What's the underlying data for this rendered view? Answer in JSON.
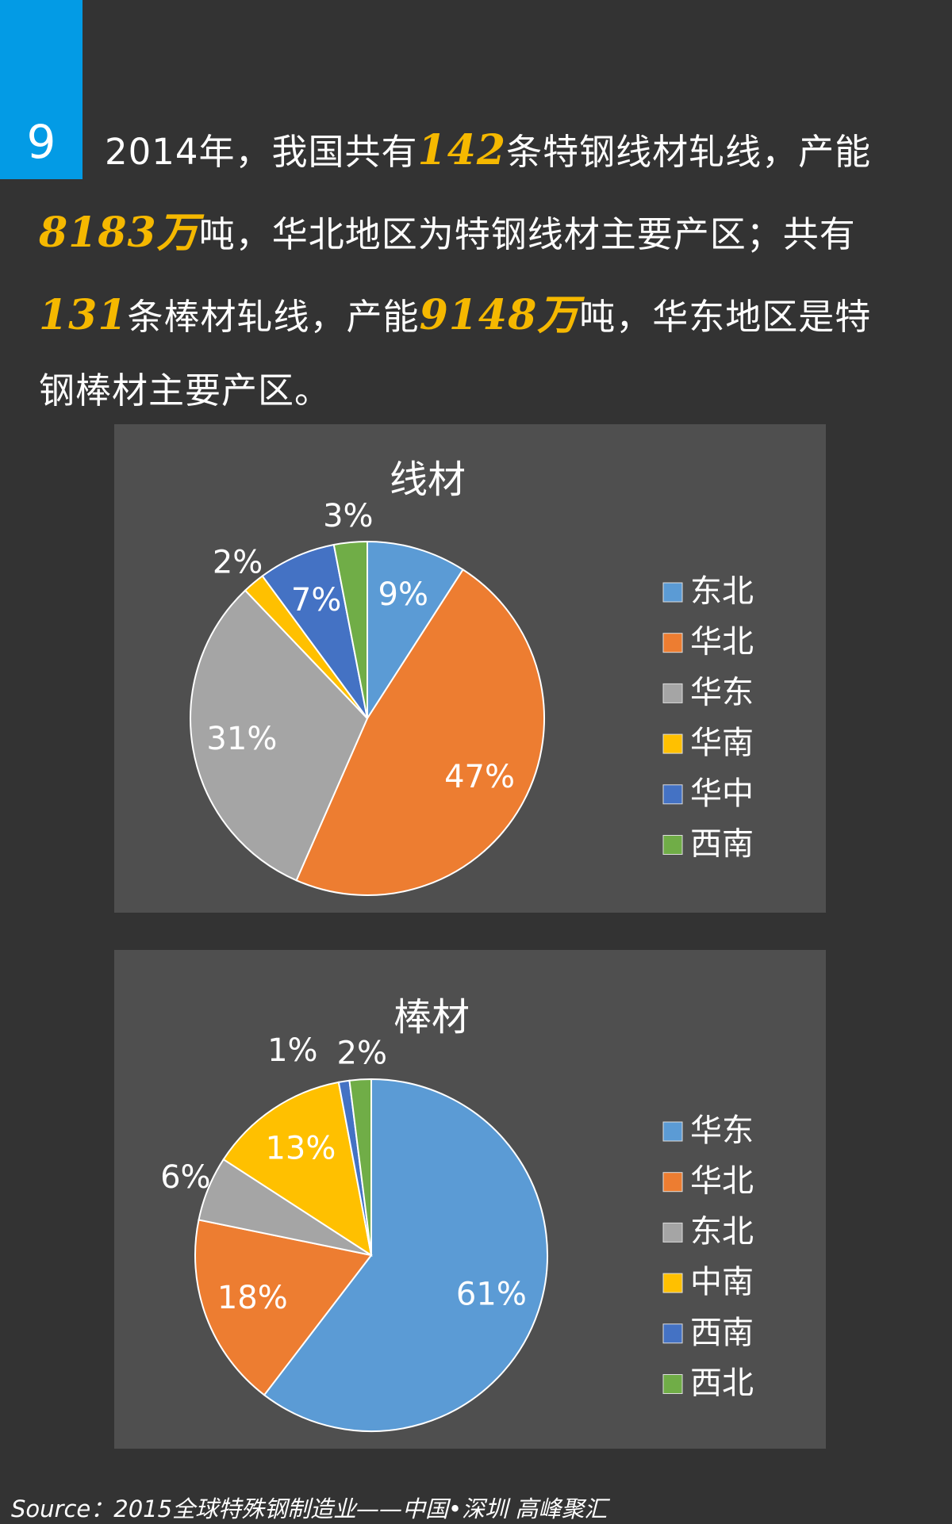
{
  "badge": {
    "number": "9"
  },
  "headline": {
    "l1a": "2014年，我国共有",
    "l1b": "142",
    "l1c": "条特钢线材轧线，产能",
    "l2a": "8183万",
    "l2b": "吨，华北地区为特钢线材主要产区；共有",
    "l3a": "131",
    "l3b": "条棒材轧线，产能",
    "l3c": "9148万",
    "l3d": "吨，华东地区是特",
    "l4": "钢棒材主要产区。"
  },
  "source": "Source：2015全球特殊钢制造业——中国•深圳 高峰聚汇",
  "chart_data": [
    {
      "type": "pie",
      "title": "线材",
      "categories": [
        "东北",
        "华北",
        "华东",
        "华南",
        "华中",
        "西南"
      ],
      "values": [
        9,
        47,
        31,
        2,
        7,
        3
      ],
      "labels": [
        "9%",
        "47%",
        "31%",
        "2%",
        "7%",
        "3%"
      ],
      "colors": [
        "#5b9bd5",
        "#ed7d31",
        "#a5a5a5",
        "#ffc000",
        "#4472c4",
        "#70ad47"
      ],
      "legend": "right"
    },
    {
      "type": "pie",
      "title": "棒材",
      "categories": [
        "华东",
        "华北",
        "东北",
        "中南",
        "西南",
        "西北"
      ],
      "values": [
        61,
        18,
        6,
        13,
        1,
        2
      ],
      "labels": [
        "61%",
        "18%",
        "6%",
        "13%",
        "1%",
        "2%"
      ],
      "colors": [
        "#5b9bd5",
        "#ed7d31",
        "#a5a5a5",
        "#ffc000",
        "#4472c4",
        "#70ad47"
      ],
      "legend": "right"
    }
  ]
}
